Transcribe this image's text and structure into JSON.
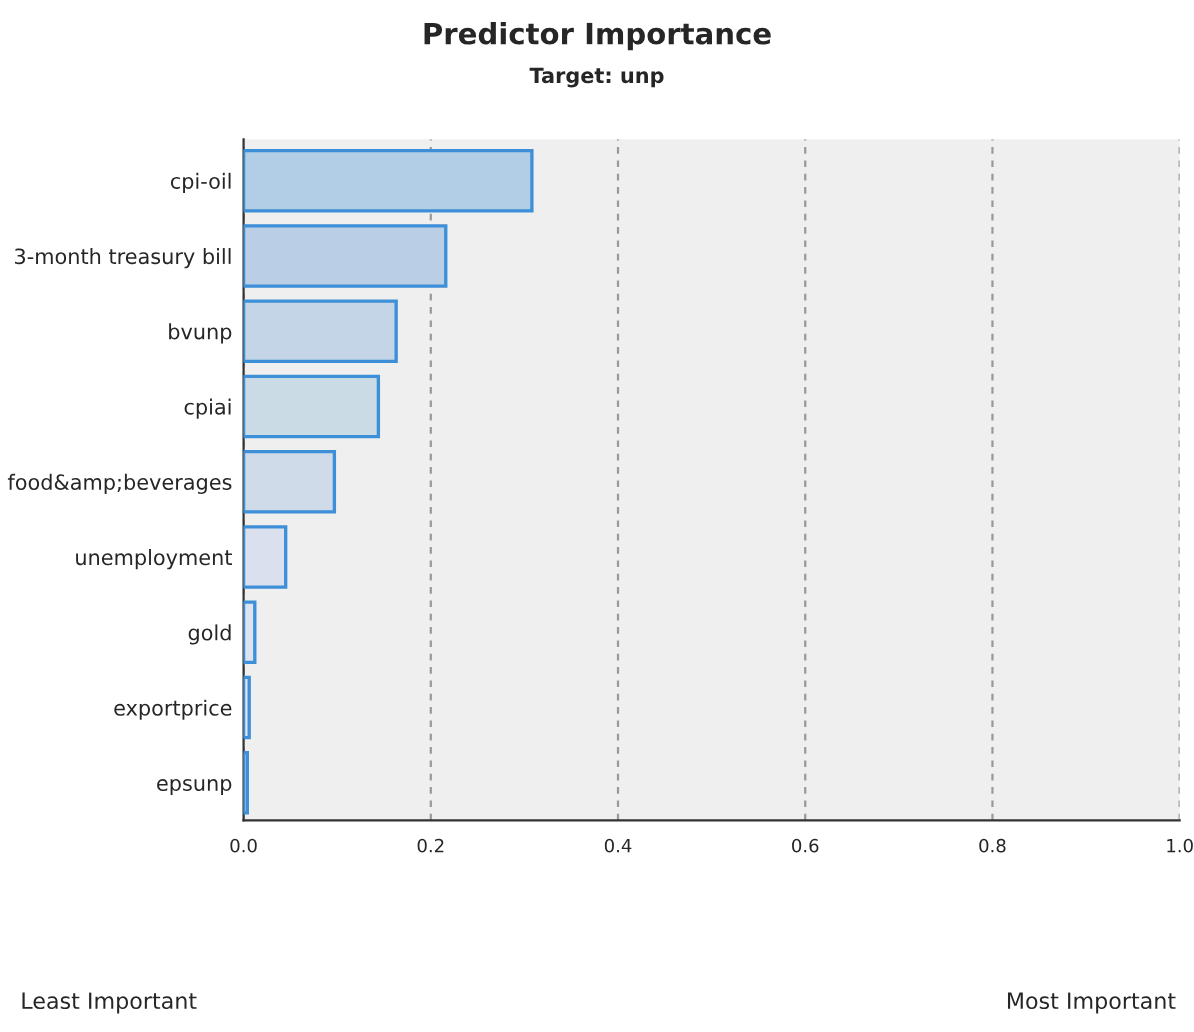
{
  "chart_data": {
    "type": "bar",
    "orientation": "horizontal",
    "title": "Predictor Importance",
    "subtitle": "Target: unp",
    "categories": [
      "cpi-oil",
      "3-month treasury bill",
      "bvunp",
      "cpiai",
      "food&amp;beverages",
      "unemployment",
      "gold",
      "exportprice",
      "epsunp"
    ],
    "values": [
      0.308,
      0.216,
      0.163,
      0.144,
      0.097,
      0.045,
      0.012,
      0.006,
      0.004
    ],
    "colors": [
      "#b2cde6",
      "#bacfe6",
      "#c3d5e6",
      "#cbdbe6",
      "#d0dbea",
      "#dae0ee",
      "#dde3ef",
      "#dfe4ef",
      "#e0e5f0"
    ],
    "xlim": [
      0,
      1
    ],
    "xticks": [
      {
        "value": 0,
        "label": "0.0"
      },
      {
        "value": 0.2,
        "label": "0.2"
      },
      {
        "value": 0.4,
        "label": "0.4"
      },
      {
        "value": 0.6,
        "label": "0.6"
      },
      {
        "value": 0.8,
        "label": "0.8"
      },
      {
        "value": 1,
        "label": "1.0"
      }
    ],
    "grid": "x",
    "annotations": [
      "Least Important",
      "Most Important"
    ]
  }
}
